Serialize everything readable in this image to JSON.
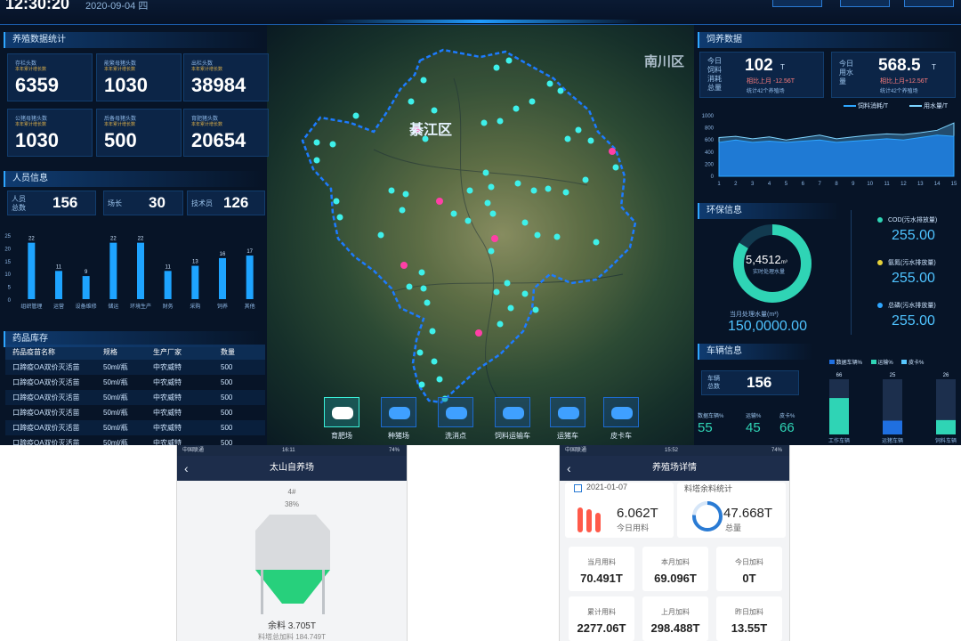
{
  "header": {
    "clock": "12:30:20",
    "date": "2020-09-04  四"
  },
  "map": {
    "district_main": "綦江区",
    "district_corner": "南川区"
  },
  "breeding_stats": {
    "title": "养殖数据统计",
    "cards": [
      {
        "label": "存栏头数",
        "sub": "本年累计增长数",
        "value": "6359"
      },
      {
        "label": "能繁母猪头数",
        "sub": "本年累计增长数",
        "value": "1030"
      },
      {
        "label": "出栏头数",
        "sub": "本年累计增长数",
        "value": "38984"
      },
      {
        "label": "公猪母猪头数",
        "sub": "本年累计增长数",
        "value": "1030"
      },
      {
        "label": "后备母猪头数",
        "sub": "本年累计增长数",
        "value": "500"
      },
      {
        "label": "育肥猪头数",
        "sub": "本年累计增长数",
        "value": "20654"
      }
    ]
  },
  "personnel": {
    "title": "人员信息",
    "items": [
      {
        "label": "人员总数",
        "value": "156"
      },
      {
        "label": "场长",
        "value": "30"
      },
      {
        "label": "技术员",
        "value": "126"
      }
    ]
  },
  "personnel_chart": {
    "type": "bar",
    "categories": [
      "组织管理",
      "运营",
      "设备维修",
      "储运",
      "环境生产",
      "财务",
      "采购",
      "饲养",
      "其他"
    ],
    "values": [
      22,
      11,
      9,
      22,
      22,
      11,
      13,
      16,
      17
    ],
    "ylim": [
      0,
      25
    ],
    "yticks": [
      "25",
      "20",
      "15",
      "10",
      "5",
      "0"
    ]
  },
  "medicine": {
    "title": "药品库存",
    "headers": [
      "药品疫苗名称",
      "规格",
      "生产厂家",
      "数量"
    ],
    "rows": [
      [
        "口蹄疫OA双价灭活苗",
        "50ml/瓶",
        "中农威特",
        "500"
      ],
      [
        "口蹄疫OA双价灭活苗",
        "50ml/瓶",
        "中农威特",
        "500"
      ],
      [
        "口蹄疫OA双价灭活苗",
        "50ml/瓶",
        "中农威特",
        "500"
      ],
      [
        "口蹄疫OA双价灭活苗",
        "50ml/瓶",
        "中农威特",
        "500"
      ],
      [
        "口蹄疫OA双价灭活苗",
        "50ml/瓶",
        "中农威特",
        "500"
      ],
      [
        "口蹄疫OA双价灭活苗",
        "50ml/瓶",
        "中农威特",
        "500"
      ]
    ]
  },
  "map_icons": [
    {
      "label": "育肥场",
      "icon": "pig-icon"
    },
    {
      "label": "种猪场",
      "icon": "boar-icon"
    },
    {
      "label": "洗消点",
      "icon": "wash-station-icon"
    },
    {
      "label": "饲料运输车",
      "icon": "feed-truck-icon"
    },
    {
      "label": "运猪车",
      "icon": "pig-truck-icon"
    },
    {
      "label": "皮卡车",
      "icon": "pickup-icon"
    }
  ],
  "feed_data": {
    "title": "饲养数据",
    "left": {
      "lbl1": "今日",
      "lbl2": "饲料",
      "lbl3": "消耗",
      "lbl4": "总量",
      "value": "102",
      "unit": "T",
      "change": "相比上月 -12.56T",
      "note": "统计42个养殖场"
    },
    "right": {
      "lbl1": "今日",
      "lbl2": "用水",
      "lbl3": "量",
      "value": "568.5",
      "unit": "T",
      "change": "相比上月+12.56T",
      "note": "统计42个养殖场"
    },
    "legend": [
      "饲料消耗/T",
      "用水量/T"
    ]
  },
  "feed_chart": {
    "type": "area",
    "x": [
      1,
      2,
      3,
      4,
      5,
      6,
      7,
      8,
      9,
      10,
      11,
      12,
      13,
      14,
      15
    ],
    "yticks": [
      "1000",
      "800",
      "600",
      "400",
      "200",
      "0"
    ],
    "series": [
      {
        "name": "饲料消耗/T",
        "values": [
          560,
          600,
          560,
          580,
          560,
          580,
          600,
          560,
          580,
          600,
          620,
          600,
          640,
          680,
          660
        ]
      },
      {
        "name": "用水量/T",
        "values": [
          640,
          660,
          620,
          650,
          600,
          640,
          680,
          620,
          650,
          680,
          700,
          690,
          720,
          760,
          880
        ]
      }
    ]
  },
  "env": {
    "title": "环保信息",
    "gauge_value": "5,4512",
    "gauge_unit": "m³",
    "gauge_label": "实时处理水量",
    "total_label": "当月处理水量(m³)",
    "total_value": "150,0000.00",
    "gases": [
      {
        "label": "COD(污水排放量)",
        "value": "255.00"
      },
      {
        "label": "氨氮(污水排放量)",
        "value": "255.00"
      },
      {
        "label": "总磷(污水排放量)",
        "value": "255.00"
      }
    ]
  },
  "vehicles": {
    "title": "车辆信息",
    "total_label": "车辆总数",
    "total": "156",
    "stats": [
      {
        "label": "数据车辆%",
        "value": "55"
      },
      {
        "label": "运输%",
        "value": "45"
      },
      {
        "label": "皮卡%",
        "value": "66"
      }
    ],
    "legend": [
      "数据车辆%",
      "运输%",
      "皮卡%"
    ]
  },
  "vehicle_chart": {
    "type": "bar",
    "categories": [
      "工作车辆",
      "运猪车辆",
      "饲料车辆"
    ],
    "values": [
      66,
      25,
      26
    ]
  },
  "phone1": {
    "status_left": "中国联通",
    "time": "16:11",
    "battery": "74%",
    "title": "太山自养场",
    "tower": "4#",
    "percent": "38%",
    "fill_fraction": 0.38,
    "remain": "余料 3.705T",
    "add": "料塔总加料 184.749T"
  },
  "phone2": {
    "status_left": "中国联通",
    "time": "15:52",
    "battery": "74%",
    "title": "养殖场详情",
    "date": "2021-01-07",
    "stats_title": "料塔余料统计",
    "today_value": "6.062T",
    "today_label": "今日用料",
    "total_value": "47.668T",
    "total_label": "总量",
    "grid": [
      {
        "label": "当月用料",
        "value": "70.491T"
      },
      {
        "label": "本月加料",
        "value": "69.096T"
      },
      {
        "label": "今日加料",
        "value": "0T"
      },
      {
        "label": "累计用料",
        "value": "2277.06T"
      },
      {
        "label": "上月加料",
        "value": "298.488T"
      },
      {
        "label": "昨日加料",
        "value": "13.55T"
      }
    ]
  }
}
